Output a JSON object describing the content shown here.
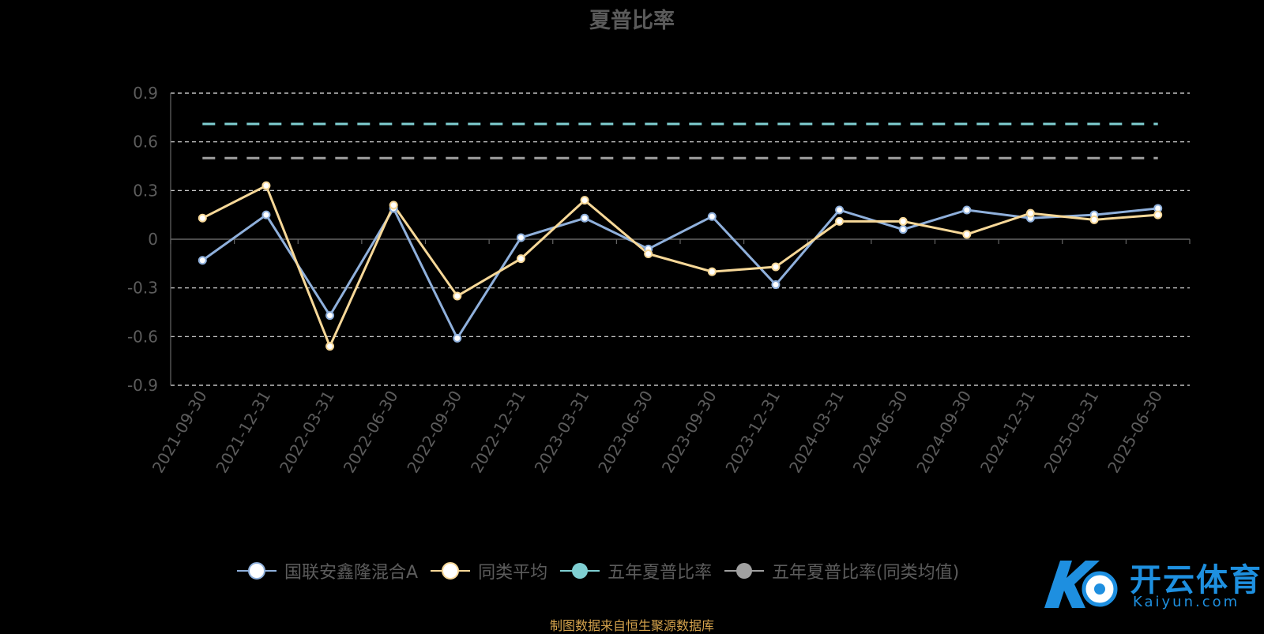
{
  "chart_data": {
    "type": "line",
    "title": "夏普比率",
    "categories": [
      "2021-09-30",
      "2021-12-31",
      "2022-03-31",
      "2022-06-30",
      "2022-09-30",
      "2022-12-31",
      "2023-03-31",
      "2023-06-30",
      "2023-09-30",
      "2023-12-31",
      "2024-03-31",
      "2024-06-30",
      "2024-09-30",
      "2024-12-31",
      "2025-03-31",
      "2025-06-30"
    ],
    "yticks": [
      "0.9",
      "0.6",
      "0.3",
      "0",
      "-0.3",
      "-0.6",
      "-0.9"
    ],
    "ylim": [
      -0.9,
      0.9
    ],
    "grid": true,
    "legend_position": "bottom",
    "series": [
      {
        "name": "国联安鑫隆混合A",
        "color": "#8fb0dc",
        "values": [
          -0.13,
          0.15,
          -0.47,
          0.19,
          -0.61,
          0.01,
          0.13,
          -0.06,
          0.14,
          -0.28,
          0.18,
          0.06,
          0.18,
          0.13,
          0.15,
          0.19
        ]
      },
      {
        "name": "同类平均",
        "color": "#f7d898",
        "values": [
          0.13,
          0.33,
          -0.66,
          0.21,
          -0.35,
          -0.12,
          0.24,
          -0.09,
          -0.2,
          -0.17,
          0.11,
          0.11,
          0.03,
          0.16,
          0.12,
          0.15
        ]
      },
      {
        "name": "五年夏普比率",
        "color": "#7fcfd2",
        "dashed": true,
        "values": [
          0.71,
          0.71,
          0.71,
          0.71,
          0.71,
          0.71,
          0.71,
          0.71,
          0.71,
          0.71,
          0.71,
          0.71,
          0.71,
          0.71,
          0.71,
          0.71
        ]
      },
      {
        "name": "五年夏普比率(同类均值)",
        "color": "#a0a0a0",
        "dashed": true,
        "values": [
          0.5,
          0.5,
          0.5,
          0.5,
          0.5,
          0.5,
          0.5,
          0.5,
          0.5,
          0.5,
          0.5,
          0.5,
          0.5,
          0.5,
          0.5,
          0.5
        ]
      }
    ]
  },
  "legend": {
    "items": [
      {
        "label": "国联安鑫隆混合A"
      },
      {
        "label": "同类平均"
      },
      {
        "label": "五年夏普比率"
      },
      {
        "label": "五年夏普比率(同类均值)"
      }
    ]
  },
  "footer": {
    "source_note": "制图数据来自恒生聚源数据库"
  },
  "watermark": {
    "brand": "开云体育",
    "domain": "Kaiyun.com"
  }
}
